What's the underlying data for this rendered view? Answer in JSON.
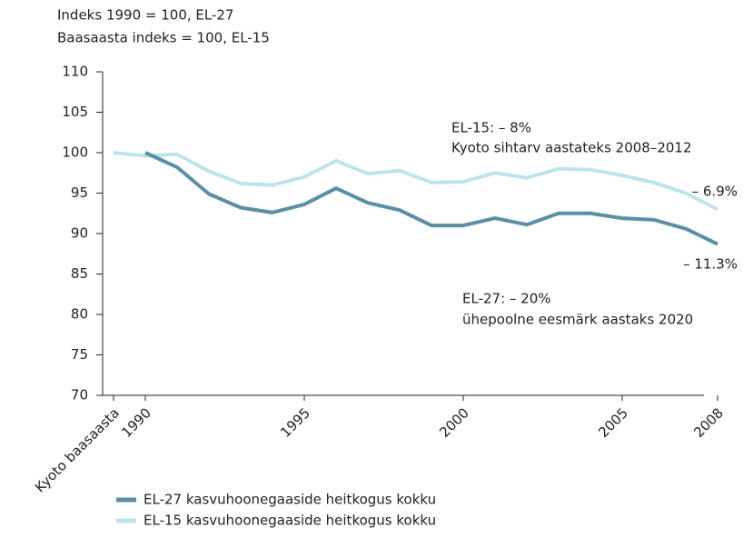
{
  "chart_data": {
    "type": "line",
    "annotations": [
      "Indeks 1990 = 100, EL-27",
      "Baasaasta indeks = 100, EL-15",
      "EL-15: – 8%",
      "Kyoto sihtarv aastateks 2008–2012",
      "– 6.9%",
      "– 11.3%",
      "EL-27: – 20%",
      "ühepoolne eesmärk aastaks 2020"
    ],
    "categories": [
      "Kyoto baasaasta",
      "1990",
      null,
      null,
      null,
      null,
      "1995",
      null,
      null,
      null,
      null,
      "2000",
      null,
      null,
      null,
      null,
      "2005",
      null,
      null,
      "2008"
    ],
    "series": [
      {
        "name": "EL-27 kasvuhoonegaaside heitkogus kokku",
        "color": "#5b8fa3",
        "values": [
          null,
          100,
          98.2,
          94.9,
          93.2,
          92.6,
          93.6,
          95.6,
          93.8,
          92.9,
          91.0,
          91.0,
          91.9,
          91.1,
          92.5,
          92.5,
          91.9,
          91.7,
          90.6,
          88.7
        ]
      },
      {
        "name": "EL-15 kasvuhoonegaaside heitkogus kokku",
        "color": "#bfe3ea",
        "values": [
          100,
          99.6,
          99.8,
          97.7,
          96.2,
          96.0,
          97.0,
          99.0,
          97.4,
          97.8,
          96.3,
          96.4,
          97.5,
          96.9,
          98.0,
          97.9,
          97.2,
          96.3,
          95.0,
          93.0
        ]
      }
    ],
    "ylim": [
      70,
      110
    ],
    "yticks": [
      70,
      75,
      80,
      85,
      90,
      95,
      100,
      105,
      110
    ]
  }
}
